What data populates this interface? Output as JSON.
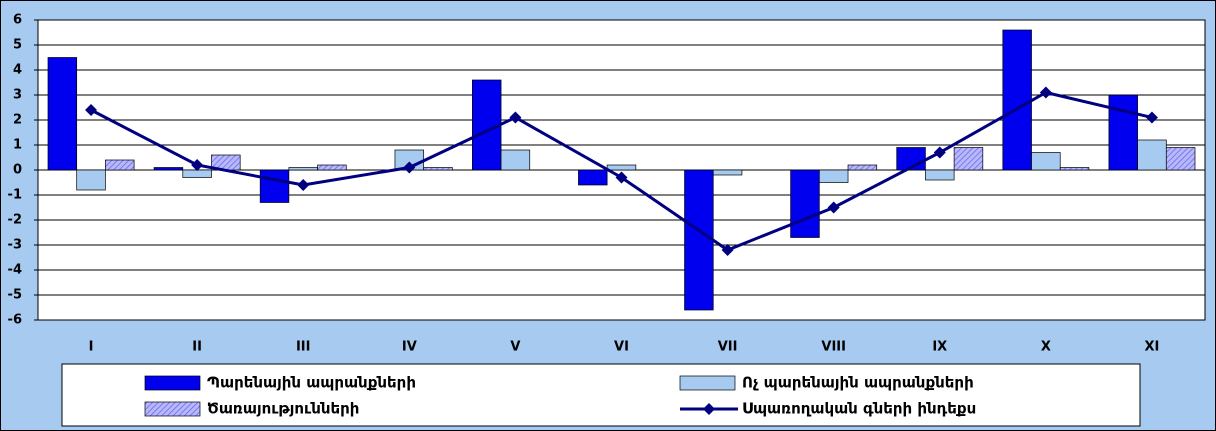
{
  "chart_data": {
    "type": "bar",
    "categories": [
      "I",
      "II",
      "III",
      "IV",
      "V",
      "VI",
      "VII",
      "VIII",
      "IX",
      "X",
      "XI"
    ],
    "series": [
      {
        "name": "Պարենային ապրանքների",
        "color": "#0000ee",
        "values": [
          4.5,
          0.1,
          -1.3,
          0,
          3.6,
          -0.6,
          -5.6,
          -2.7,
          0.9,
          5.6,
          3.0
        ]
      },
      {
        "name": "Ոչ պարենային  ապրանքների",
        "color": "#a6caf0",
        "values": [
          -0.8,
          -0.3,
          0.1,
          0.8,
          0.8,
          0.2,
          -0.2,
          -0.5,
          -0.4,
          0.7,
          1.2
        ]
      },
      {
        "name": "Ծառայությունների",
        "color": "#9999ff",
        "pattern": "hatch",
        "values": [
          0.4,
          0.6,
          0.2,
          0.1,
          0,
          0,
          0,
          0.2,
          0.9,
          0.1,
          0.9
        ]
      },
      {
        "name": "Սպառողական գների ինդեքս",
        "color": "#000080",
        "type": "line",
        "values": [
          2.4,
          0.2,
          -0.6,
          0.1,
          2.1,
          -0.3,
          -3.2,
          -1.5,
          0.7,
          3.1,
          2.1
        ]
      }
    ],
    "ylim": [
      -6,
      6
    ],
    "yticks": [
      -6,
      -5,
      -4,
      -3,
      -2,
      -1,
      0,
      1,
      2,
      3,
      4,
      5,
      6
    ],
    "grid": true,
    "legend": "bottom"
  }
}
